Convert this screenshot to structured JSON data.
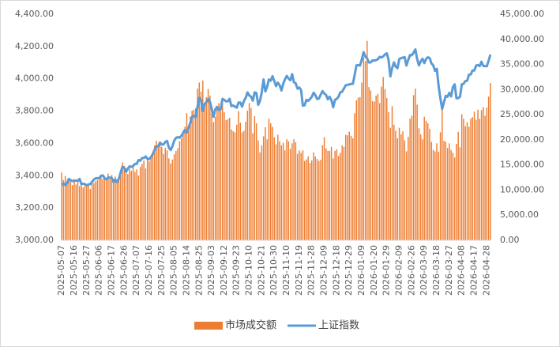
{
  "chart_data": {
    "type": "combo",
    "categories": [
      "2025-05-07",
      null,
      null,
      null,
      null,
      null,
      null,
      "2025-05-16",
      null,
      null,
      null,
      null,
      null,
      null,
      "2025-05-27",
      null,
      null,
      null,
      null,
      null,
      null,
      "2025-06-06",
      null,
      null,
      null,
      null,
      null,
      null,
      "2025-06-17",
      null,
      null,
      null,
      null,
      null,
      null,
      "2025-06-26",
      null,
      null,
      null,
      null,
      null,
      null,
      "2025-07-07",
      null,
      null,
      null,
      null,
      null,
      null,
      "2025-07-16",
      null,
      null,
      null,
      null,
      null,
      null,
      "2025-07-25",
      null,
      null,
      null,
      null,
      null,
      null,
      "2025-08-05",
      null,
      null,
      null,
      null,
      null,
      null,
      "2025-08-14",
      null,
      null,
      null,
      null,
      null,
      null,
      "2025-08-25",
      null,
      null,
      null,
      null,
      null,
      null,
      "2025-09-03",
      null,
      null,
      null,
      null,
      null,
      null,
      "2025-09-12",
      null,
      null,
      null,
      null,
      null,
      null,
      "2025-09-23",
      null,
      null,
      null,
      null,
      null,
      null,
      "2025-10-10",
      null,
      null,
      null,
      null,
      null,
      null,
      "2025-10-21",
      null,
      null,
      null,
      null,
      null,
      null,
      "2025-10-30",
      null,
      null,
      null,
      null,
      null,
      null,
      "2025-11-10",
      null,
      null,
      null,
      null,
      null,
      null,
      "2025-11-19",
      null,
      null,
      null,
      null,
      null,
      null,
      "2025-11-28",
      null,
      null,
      null,
      null,
      null,
      null,
      "2025-12-09",
      null,
      null,
      null,
      null,
      null,
      null,
      "2025-12-18",
      null,
      null,
      null,
      null,
      null,
      null,
      "2025-12-29",
      null,
      null,
      null,
      null,
      null,
      null,
      "2026-01-09",
      null,
      null,
      null,
      null,
      null,
      null,
      "2026-01-20",
      null,
      null,
      null,
      null,
      null,
      null,
      "2026-01-29",
      null,
      null,
      null,
      null,
      null,
      null,
      "2026-02-09",
      null,
      null,
      null,
      null,
      null,
      null,
      "2026-02-26",
      null,
      null,
      null,
      null,
      null,
      null,
      "2026-03-09",
      null,
      null,
      null,
      null,
      null,
      null,
      "2026-03-18",
      null,
      null,
      null,
      null,
      null,
      null,
      "2026-03-27",
      null,
      null,
      null,
      null,
      null,
      null,
      "2026-04-08",
      null,
      null,
      null,
      null,
      null,
      null,
      "2026-04-17",
      null,
      null,
      null,
      null,
      null,
      null,
      "2026-04-28",
      null,
      null
    ],
    "series": [
      {
        "name": "市场成交额",
        "type": "bar",
        "axis": "y2",
        "color": "#ED7D31",
        "values": [
          13500,
          12000,
          12800,
          11500,
          12400,
          11800,
          11000,
          12200,
          11100,
          11600,
          10800,
          11300,
          10500,
          10900,
          10800,
          11000,
          10200,
          11700,
          11400,
          11800,
          12000,
          12500,
          13000,
          12200,
          12800,
          12400,
          13300,
          12600,
          13000,
          12200,
          12700,
          11600,
          11900,
          13800,
          15500,
          14800,
          14300,
          13200,
          14200,
          13800,
          14900,
          13600,
          14100,
          12900,
          14600,
          15200,
          15900,
          14300,
          16200,
          15700,
          16800,
          17300,
          18900,
          19800,
          18700,
          19100,
          18600,
          17200,
          18400,
          17900,
          16300,
          15300,
          16100,
          17100,
          17800,
          18300,
          19700,
          20300,
          21900,
          22600,
          25300,
          21800,
          24600,
          25800,
          26000,
          26300,
          30200,
          31400,
          29600,
          31800,
          27000,
          28500,
          30100,
          28800,
          25400,
          23500,
          24600,
          26100,
          27300,
          25800,
          28400,
          25500,
          23900,
          24100,
          24400,
          22100,
          21700,
          21500,
          23000,
          25700,
          23400,
          21500,
          21800,
          23600,
          25800,
          27300,
          26300,
          21300,
          24700,
          23300,
          19900,
          17500,
          18900,
          20700,
          22500,
          20100,
          24200,
          23300,
          22600,
          20500,
          19100,
          21000,
          19700,
          18900,
          19400,
          17900,
          20100,
          19700,
          18200,
          19300,
          20100,
          19500,
          17200,
          17900,
          17400,
          17900,
          15800,
          16100,
          16700,
          15400,
          15900,
          17500,
          16700,
          16200,
          15800,
          16000,
          18900,
          20500,
          18300,
          17800,
          17800,
          18600,
          16300,
          17800,
          18100,
          16800,
          17400,
          18900,
          18600,
          21000,
          20900,
          21600,
          20800,
          20300,
          25300,
          27900,
          28400,
          28500,
          31400,
          36400,
          35700,
          39700,
          30500,
          29800,
          27700,
          27600,
          28800,
          29100,
          27300,
          30600,
          32500,
          30100,
          28300,
          25500,
          22400,
          26700,
          23000,
          21800,
          20300,
          22400,
          21100,
          21700,
          19900,
          17700,
          20600,
          24200,
          24800,
          28900,
          30200,
          27000,
          22300,
          21100,
          20100,
          24600,
          23800,
          23300,
          22200,
          19600,
          18000,
          17700,
          19300,
          17600,
          21500,
          27300,
          19800,
          19600,
          18400,
          19300,
          18000,
          17400,
          16500,
          19200,
          21600,
          18500,
          25100,
          24200,
          22700,
          23500,
          22600,
          24200,
          24500,
          25600,
          24000,
          26000,
          24200,
          25900,
          26500,
          24800,
          26400,
          28600,
          31300
        ]
      },
      {
        "name": "上证指数",
        "type": "line",
        "color": "#5B9BD5",
        "values": [
          3343,
          3352,
          3342,
          3354,
          3380,
          3372,
          3367,
          3367,
          3370,
          3368,
          3380,
          3348,
          3351,
          3347,
          3341,
          3346,
          3348,
          3362,
          3376,
          3384,
          3385,
          3385,
          3399,
          3402,
          3384,
          3377,
          3389,
          3388,
          3387,
          3362,
          3376,
          3360,
          3381,
          3420,
          3455,
          3448,
          3424,
          3444,
          3458,
          3454,
          3461,
          3473,
          3473,
          3497,
          3493,
          3509,
          3510,
          3519,
          3505,
          3503,
          3516,
          3534,
          3560,
          3581,
          3582,
          3605,
          3593,
          3594,
          3609,
          3615,
          3573,
          3559,
          3583,
          3617,
          3634,
          3639,
          3635,
          3647,
          3665,
          3683,
          3666,
          3697,
          3728,
          3766,
          3771,
          3763,
          3825,
          3883,
          3868,
          3800,
          3843,
          3857,
          3875,
          3858,
          3813,
          3765,
          3812,
          3826,
          3807,
          3812,
          3875,
          3870,
          3860,
          3861,
          3876,
          3831,
          3835,
          3828,
          3821,
          3853,
          3853,
          3828,
          3862,
          3882,
          3916,
          3897,
          3889,
          3865,
          3916,
          3912,
          3839,
          3863,
          3917,
          3996,
          3922,
          3950,
          3996,
          3988,
          4016,
          3987,
          3955,
          3976,
          3960,
          3928,
          3969,
          3997,
          4018,
          4002,
          3991,
          4029,
          3979,
          3972,
          3939,
          3946,
          3931,
          3834,
          3836,
          3870,
          3864,
          3875,
          3888,
          3914,
          3899,
          3875,
          3878,
          3902,
          3924,
          3909,
          3900,
          3873,
          3889,
          3867,
          3824,
          3870,
          3876,
          3890,
          3917,
          3920,
          3940,
          3960,
          3963,
          3965,
          3968,
          3969,
          4023,
          4083,
          4085,
          4082,
          4120,
          4165,
          4138,
          4126,
          4101,
          4102,
          4114,
          4113,
          4116,
          4122,
          4136,
          4132,
          4139,
          4151,
          4158,
          4117,
          4015,
          4067,
          4102,
          4075,
          4066,
          4123,
          4128,
          4131,
          4134,
          4082,
          4117,
          4147,
          4146,
          4162,
          4182,
          4122,
          4083,
          4108,
          4124,
          4097,
          4123,
          4133,
          4129,
          4095,
          4084,
          4049,
          4062,
          3957,
          3880,
          3813,
          3855,
          3895,
          3889,
          3913,
          3891,
          3948,
          3966,
          3880,
          3880,
          3890,
          3966,
          3970,
          3986,
          3988,
          4026,
          4027,
          4052,
          4051,
          4082,
          4085,
          4079,
          4106,
          4080,
          4079,
          4078,
          4112,
          4150
        ]
      }
    ],
    "ylim": [
      3000,
      4400
    ],
    "yticks": [
      {
        "value": 3000,
        "label": "3,000.00"
      },
      {
        "value": 3200,
        "label": "3,200.00"
      },
      {
        "value": 3400,
        "label": "3,400.00"
      },
      {
        "value": 3600,
        "label": "3,600.00"
      },
      {
        "value": 3800,
        "label": "3,800.00"
      },
      {
        "value": 4000,
        "label": "4,000.00"
      },
      {
        "value": 4200,
        "label": "4,200.00"
      },
      {
        "value": 4400,
        "label": "4,400.00"
      }
    ],
    "y2lim": [
      0,
      45000
    ],
    "y2ticks": [
      {
        "value": 0,
        "label": "0.00"
      },
      {
        "value": 5000,
        "label": "5,000.00"
      },
      {
        "value": 10000,
        "label": "10,000.00"
      },
      {
        "value": 15000,
        "label": "15,000.00"
      },
      {
        "value": 20000,
        "label": "20,000.00"
      },
      {
        "value": 25000,
        "label": "25,000.00"
      },
      {
        "value": 30000,
        "label": "30,000.00"
      },
      {
        "value": 35000,
        "label": "35,000.00"
      },
      {
        "value": 40000,
        "label": "40,000.00"
      },
      {
        "value": 45000,
        "label": "45,000.00"
      }
    ],
    "legend": "bottom"
  }
}
